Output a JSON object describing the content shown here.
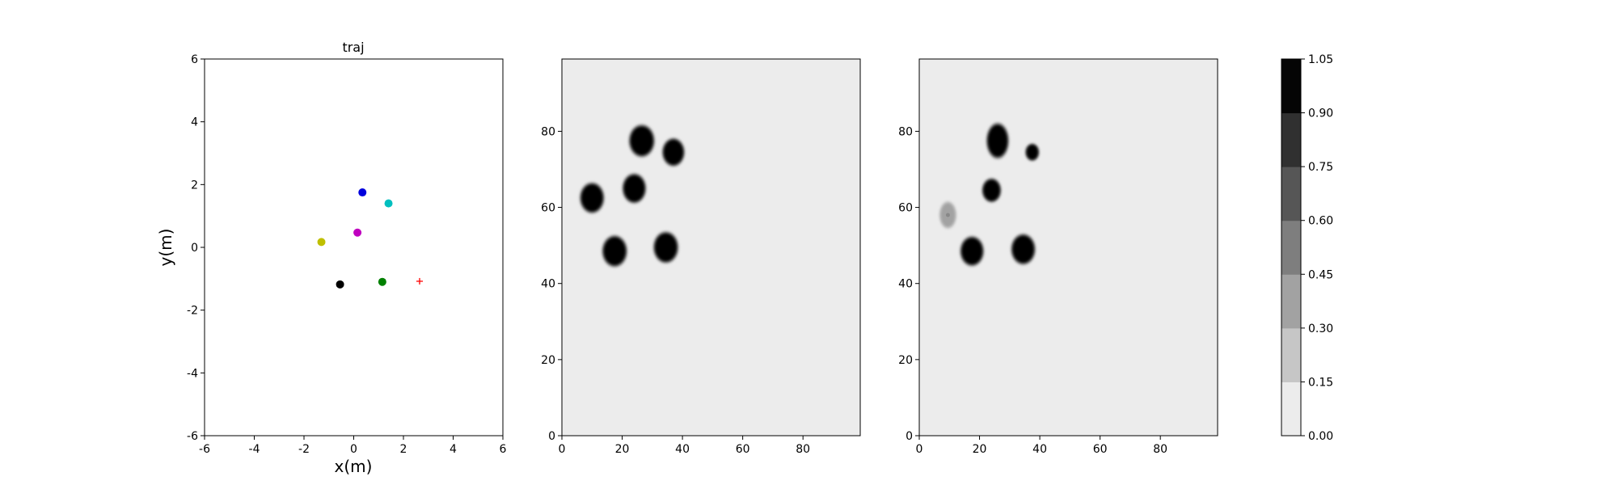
{
  "chart_data": [
    {
      "type": "scatter",
      "title": "traj",
      "xlabel": "x(m)",
      "ylabel": "y(m)",
      "xlim": [
        -6,
        6
      ],
      "ylim": [
        -6,
        6
      ],
      "xticks": [
        -6,
        -4,
        -2,
        0,
        2,
        4,
        6
      ],
      "yticks": [
        -6,
        -4,
        -2,
        0,
        2,
        4,
        6
      ],
      "grid": false,
      "points": [
        {
          "x": 0.35,
          "y": 1.75,
          "color": "#0000dd",
          "marker": "circle"
        },
        {
          "x": 1.4,
          "y": 1.4,
          "color": "#00bfbf",
          "marker": "circle"
        },
        {
          "x": 0.15,
          "y": 0.47,
          "color": "#bf00bf",
          "marker": "circle"
        },
        {
          "x": -1.3,
          "y": 0.17,
          "color": "#bfbf00",
          "marker": "circle"
        },
        {
          "x": -0.55,
          "y": -1.18,
          "color": "#000000",
          "marker": "circle"
        },
        {
          "x": 1.15,
          "y": -1.1,
          "color": "#008000",
          "marker": "circle"
        },
        {
          "x": 2.65,
          "y": -1.08,
          "color": "#ff0000",
          "marker": "plus"
        }
      ]
    },
    {
      "type": "heatmap",
      "title": "",
      "xlim": [
        0,
        99
      ],
      "ylim": [
        0,
        99
      ],
      "xticks": [
        0,
        20,
        40,
        60,
        80
      ],
      "yticks": [
        0,
        20,
        40,
        60,
        80
      ],
      "background_value": 0.05,
      "blobs": [
        {
          "x": 26.5,
          "y": 77.5,
          "r": 3.8,
          "value": 1.0
        },
        {
          "x": 37,
          "y": 74.5,
          "r": 3.3,
          "value": 1.0
        },
        {
          "x": 10,
          "y": 62.5,
          "r": 3.6,
          "value": 1.0
        },
        {
          "x": 24,
          "y": 65,
          "r": 3.5,
          "value": 1.0
        },
        {
          "x": 17.5,
          "y": 48.5,
          "r": 3.7,
          "value": 1.0
        },
        {
          "x": 34.5,
          "y": 49.5,
          "r": 3.7,
          "value": 1.0
        }
      ]
    },
    {
      "type": "heatmap",
      "title": "",
      "xlim": [
        0,
        99
      ],
      "ylim": [
        0,
        99
      ],
      "xticks": [
        0,
        20,
        40,
        60,
        80
      ],
      "yticks": [
        0,
        20,
        40,
        60,
        80
      ],
      "background_value": 0.05,
      "blobs": [
        {
          "x": 26,
          "y": 77.5,
          "rx": 3.3,
          "ry": 4.2,
          "value": 1.0
        },
        {
          "x": 37.5,
          "y": 74.5,
          "r": 2.0,
          "value": 1.0
        },
        {
          "x": 24,
          "y": 64.5,
          "r": 2.8,
          "value": 1.0
        },
        {
          "x": 9.5,
          "y": 58,
          "rx": 2.5,
          "ry": 3.2,
          "value": 0.35
        },
        {
          "x": 17.5,
          "y": 48.5,
          "r": 3.5,
          "value": 1.0
        },
        {
          "x": 34.5,
          "y": 49,
          "r": 3.6,
          "value": 1.0
        }
      ]
    }
  ],
  "colorbar": {
    "ticks": [
      "0.00",
      "0.15",
      "0.30",
      "0.45",
      "0.60",
      "0.75",
      "0.90",
      "1.05"
    ],
    "levels": [
      "#ececec",
      "#c6c6c6",
      "#a2a2a2",
      "#7e7e7e",
      "#565656",
      "#303030",
      "#050505"
    ]
  }
}
